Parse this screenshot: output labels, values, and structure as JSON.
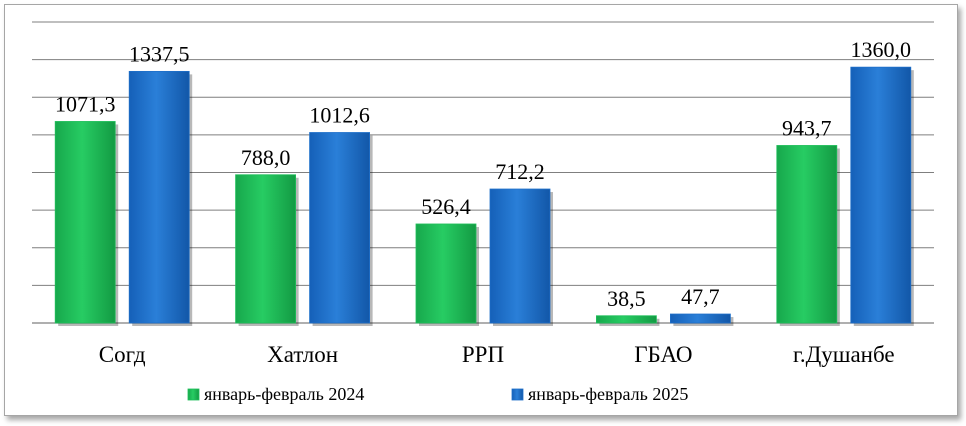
{
  "chart_data": {
    "type": "bar",
    "categories": [
      "Согд",
      "Хатлон",
      "РРП",
      "ГБАО",
      "г.Душанбе"
    ],
    "series": [
      {
        "name": "январь-февраль 2024",
        "values": [
          1071.3,
          788.0,
          526.4,
          38.5,
          943.7
        ],
        "labels": [
          "1071,3",
          "788,0",
          "526,4",
          "38,5",
          "943,7"
        ]
      },
      {
        "name": "январь-февраль 2025",
        "values": [
          1337.5,
          1012.6,
          712.2,
          47.7,
          1360.0
        ],
        "labels": [
          "1337,5",
          "1012,6",
          "712,2",
          "47,7",
          "1360,0"
        ]
      }
    ],
    "ylim": [
      0,
      1600
    ],
    "grid": true,
    "legend_position": "bottom",
    "colors": {
      "series_2024": "#1fbf5a",
      "series_2025": "#1e6fc9",
      "grid": "#7f7f7f"
    }
  }
}
